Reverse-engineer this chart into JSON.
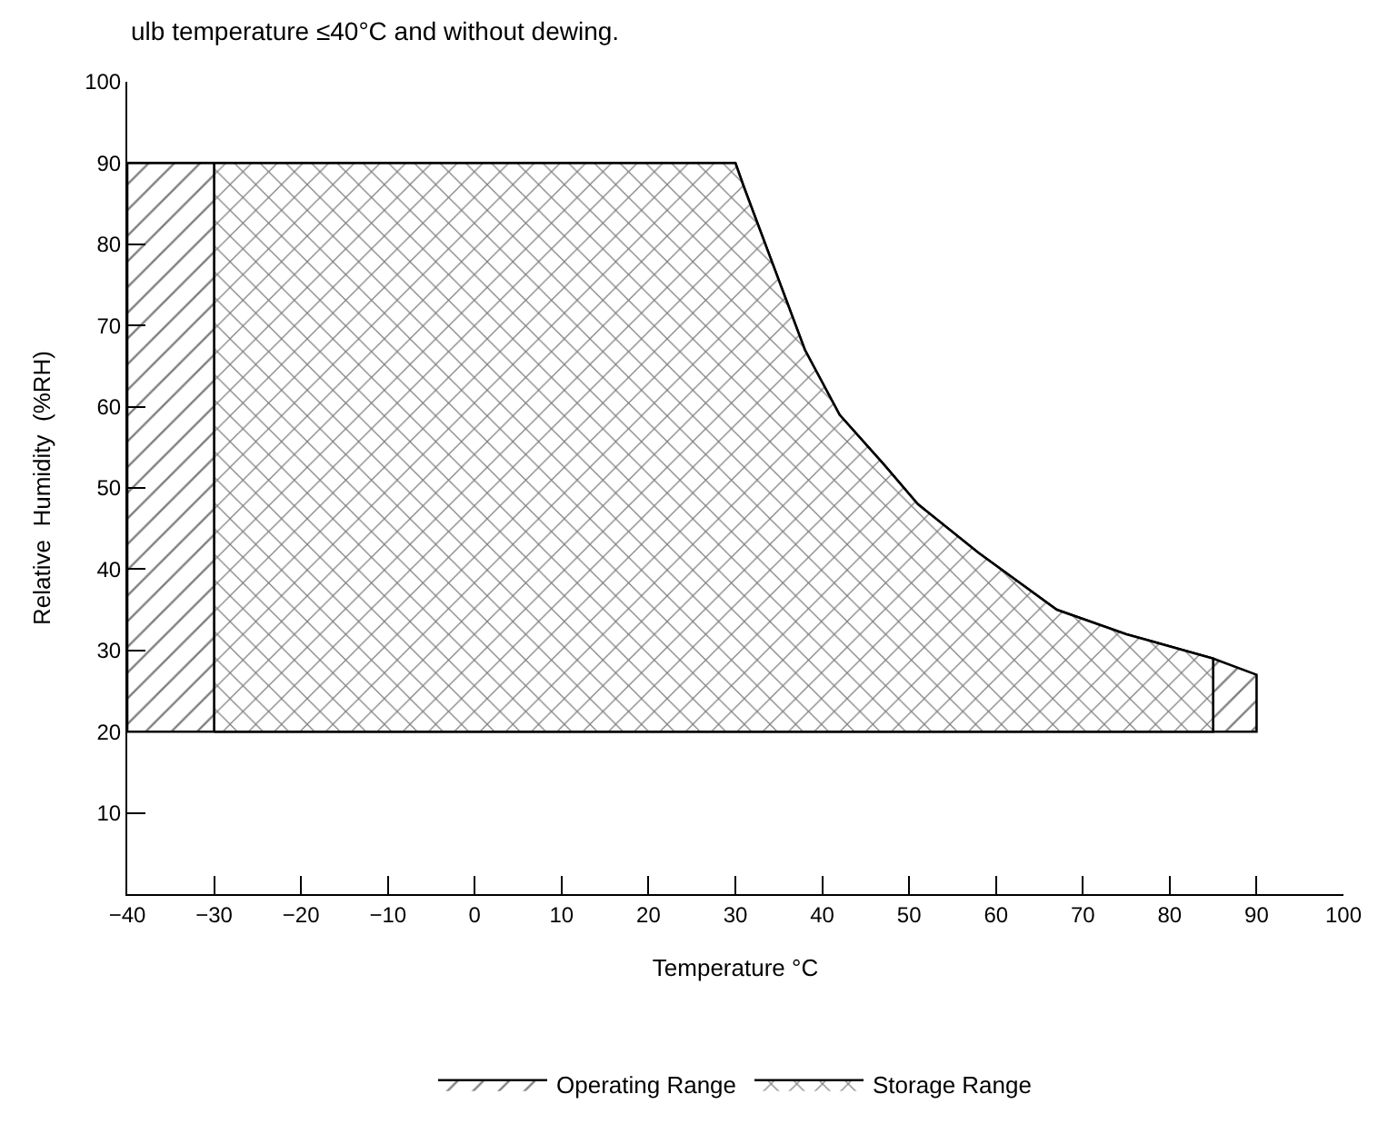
{
  "chart_data": {
    "type": "area",
    "annotations": [
      "ulb temperature ≤40°C and without dewing."
    ],
    "xlabel": "Temperature °C",
    "ylabel": "Relative  Humidity  (%RH)",
    "xlim": [
      -40,
      100
    ],
    "xticks": [
      -40,
      -30,
      -20,
      -10,
      0,
      10,
      20,
      30,
      40,
      50,
      60,
      70,
      80,
      90,
      100
    ],
    "ylim": [
      0,
      100
    ],
    "yticks": [
      10,
      20,
      30,
      40,
      50,
      60,
      70,
      80,
      90,
      100
    ],
    "grid": false,
    "legend": "bottom",
    "series": [
      {
        "name": "Operating Range",
        "color": "#000000",
        "x": [
          -40,
          -40,
          -30,
          30,
          31,
          38,
          42,
          47,
          51,
          58,
          67,
          75,
          85,
          90,
          90
        ],
        "values": [
          20,
          90,
          90,
          90,
          87,
          67,
          59,
          53,
          48,
          42,
          35,
          32,
          29,
          27,
          20
        ]
      },
      {
        "name": "Storage Range",
        "color": "#000000",
        "x": [
          -30,
          -30,
          30,
          31,
          38,
          42,
          47,
          51,
          58,
          67,
          75,
          85,
          85
        ],
        "values": [
          20,
          90,
          90,
          87,
          67,
          59,
          53,
          48,
          42,
          35,
          32,
          29,
          20
        ]
      }
    ]
  }
}
